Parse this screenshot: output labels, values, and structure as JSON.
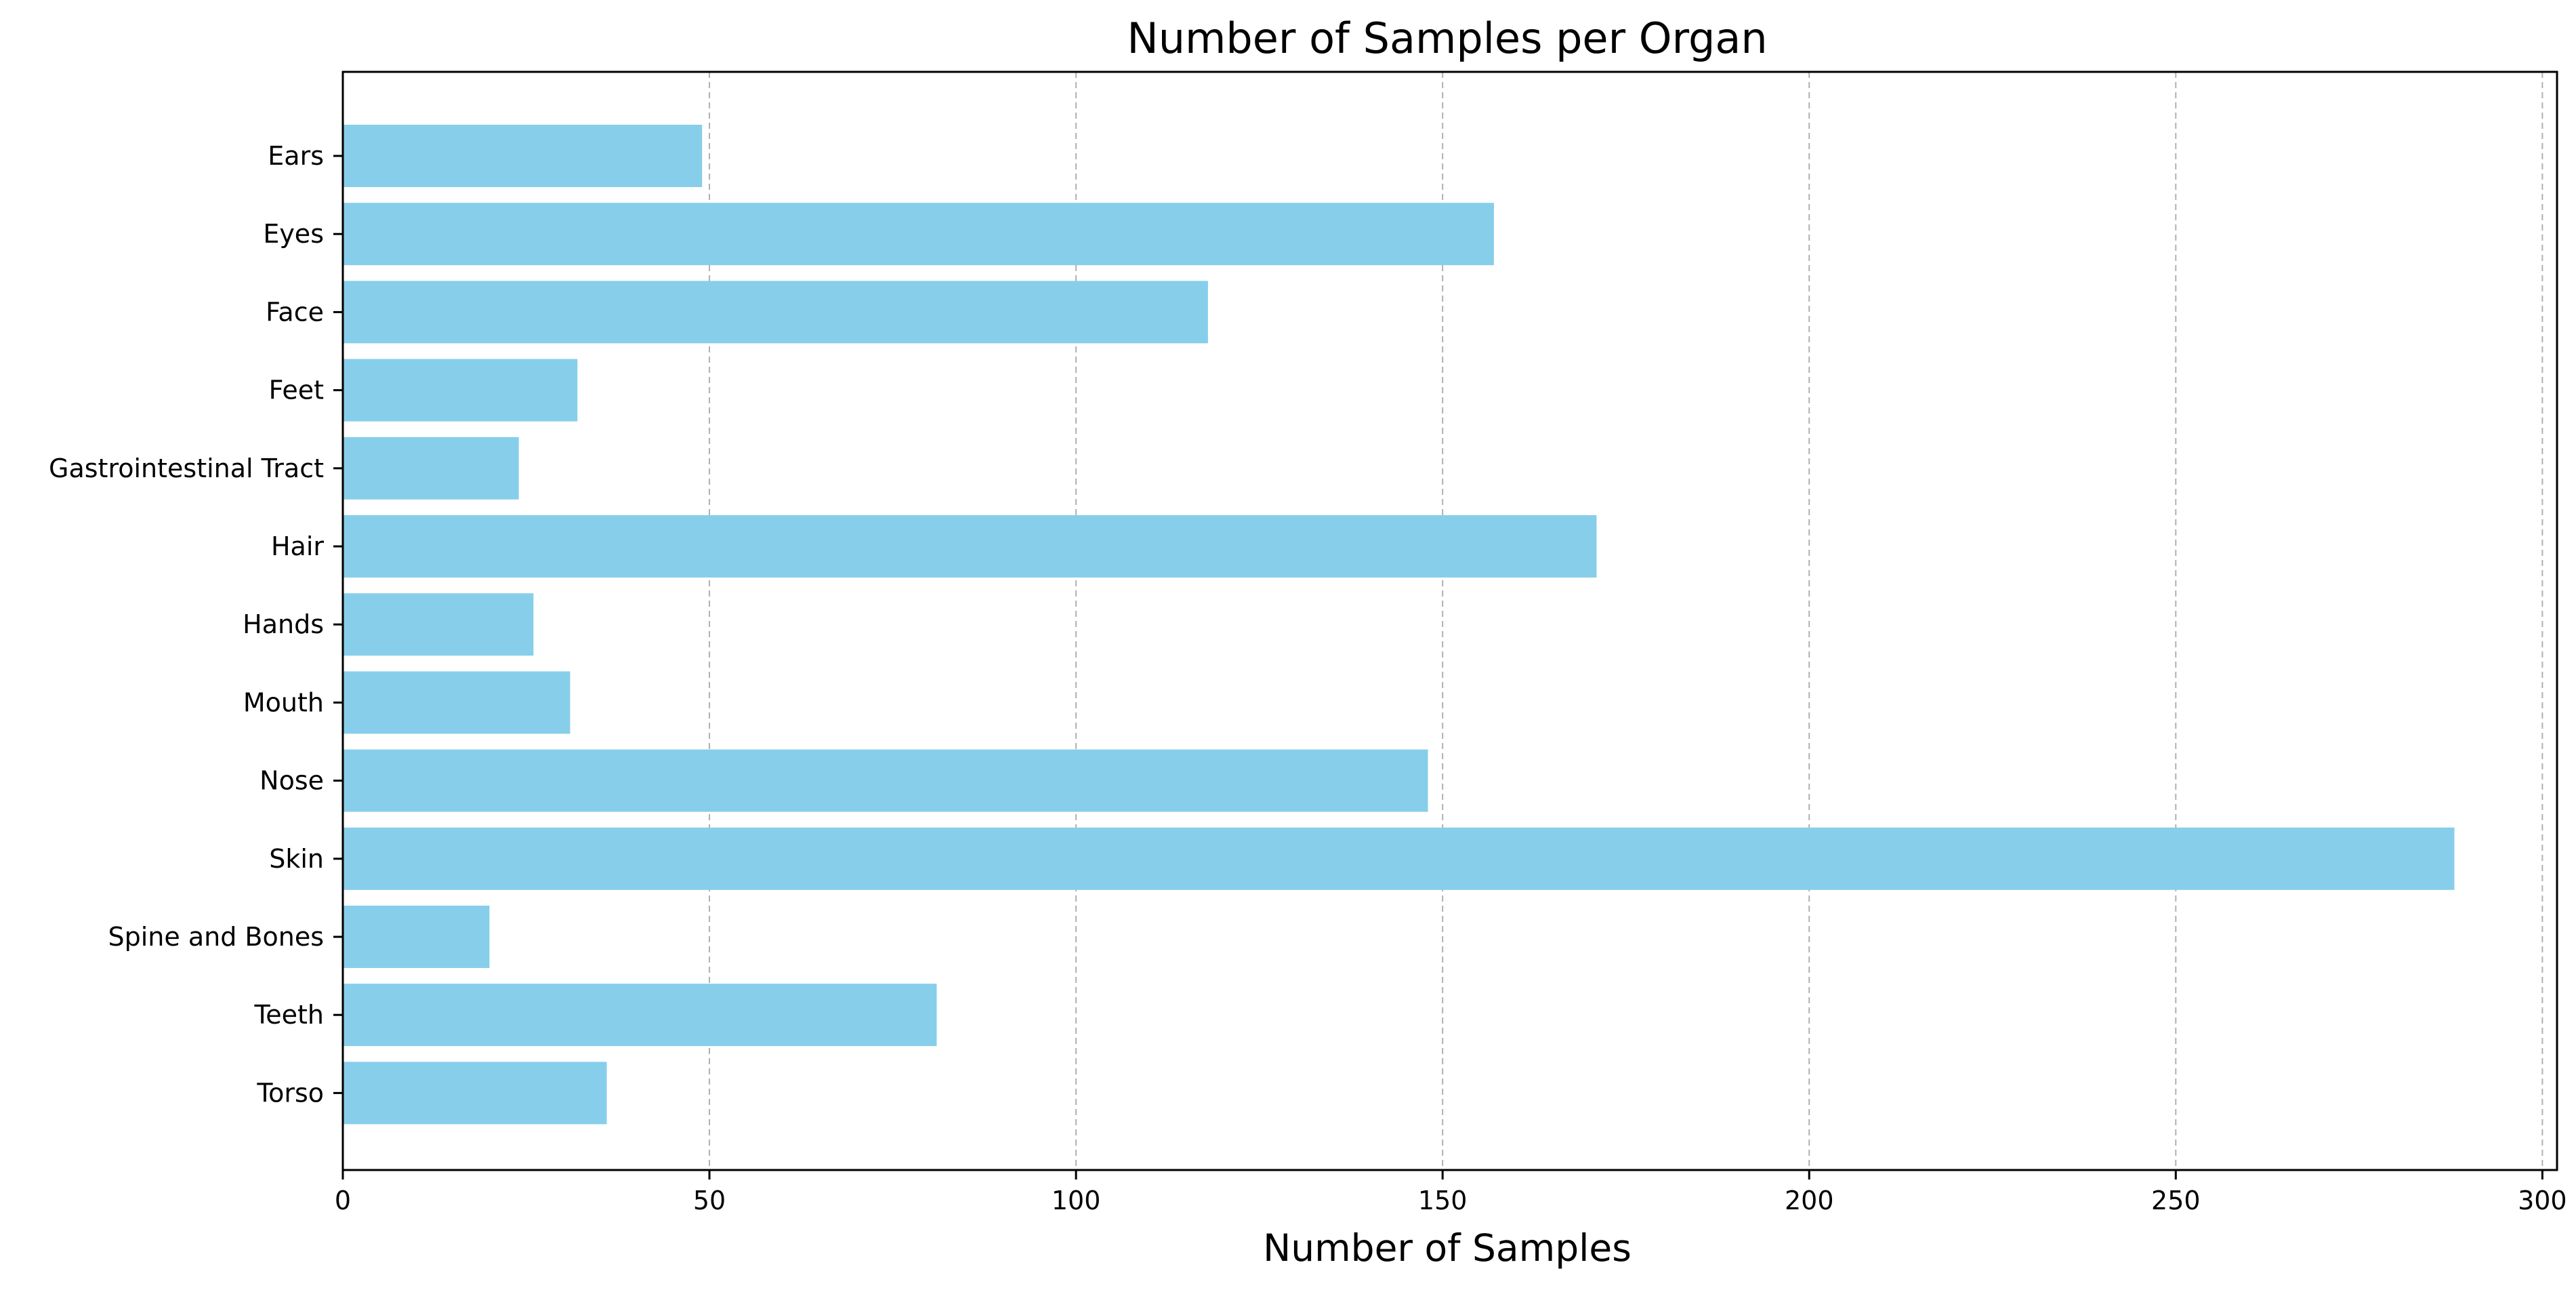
{
  "chart_data": {
    "type": "bar",
    "orientation": "horizontal",
    "title": "Number of Samples per Organ",
    "xlabel": "Number of Samples",
    "ylabel": "",
    "categories": [
      "Ears",
      "Eyes",
      "Face",
      "Feet",
      "Gastrointestinal Tract",
      "Hair",
      "Hands",
      "Mouth",
      "Nose",
      "Skin",
      "Spine and Bones",
      "Teeth",
      "Torso"
    ],
    "values": [
      49,
      157,
      118,
      32,
      24,
      171,
      26,
      31,
      148,
      288,
      20,
      81,
      36
    ],
    "xlim": [
      0,
      302
    ],
    "xticks": [
      0,
      50,
      100,
      150,
      200,
      250,
      300
    ],
    "grid": "x-axis dashed",
    "bar_color": "#87ceeb",
    "grid_color": "#b0b0b0"
  }
}
